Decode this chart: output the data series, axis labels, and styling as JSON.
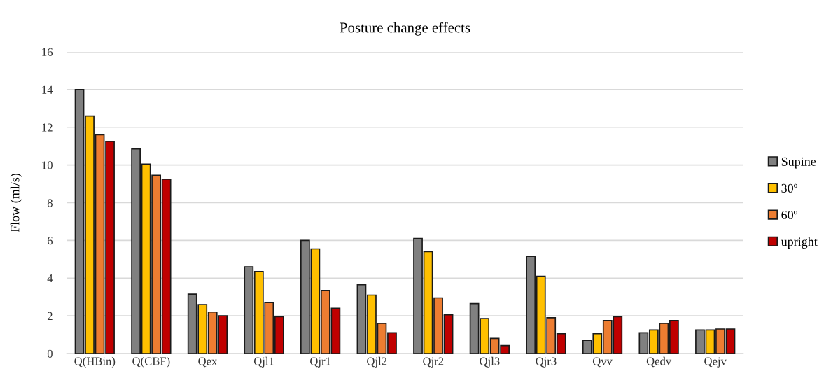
{
  "chart_data": {
    "type": "bar",
    "title": "Posture change effects",
    "ylabel": "Flow (ml/s)",
    "categories": [
      "Q(HBin)",
      "Q(CBF)",
      "Qex",
      "Qjl1",
      "Qjr1",
      "Qjl2",
      "Qjr2",
      "Qjl3",
      "Qjr3",
      "Qvv",
      "Qedv",
      "Qejv"
    ],
    "series": [
      {
        "name": "Supine",
        "color": "#808080",
        "values": [
          14.0,
          10.85,
          3.15,
          4.6,
          6.0,
          3.65,
          6.1,
          2.65,
          5.15,
          0.7,
          1.1,
          1.25
        ]
      },
      {
        "name": "30º",
        "color": "#ffc000",
        "values": [
          12.6,
          10.05,
          2.6,
          4.35,
          5.55,
          3.1,
          5.4,
          1.85,
          4.1,
          1.05,
          1.25,
          1.25
        ]
      },
      {
        "name": "60º",
        "color": "#ed7d31",
        "values": [
          11.6,
          9.45,
          2.2,
          2.7,
          3.35,
          1.6,
          2.95,
          0.8,
          1.9,
          1.75,
          1.6,
          1.3
        ]
      },
      {
        "name": "upright",
        "color": "#c00000",
        "values": [
          11.25,
          9.25,
          2.0,
          1.95,
          2.4,
          1.1,
          2.05,
          0.42,
          1.05,
          1.95,
          1.75,
          1.3
        ]
      }
    ],
    "ylim": [
      0,
      16
    ],
    "yticks": [
      0,
      2,
      4,
      6,
      8,
      10,
      12,
      14,
      16
    ],
    "grid": "y",
    "legend": "right"
  }
}
